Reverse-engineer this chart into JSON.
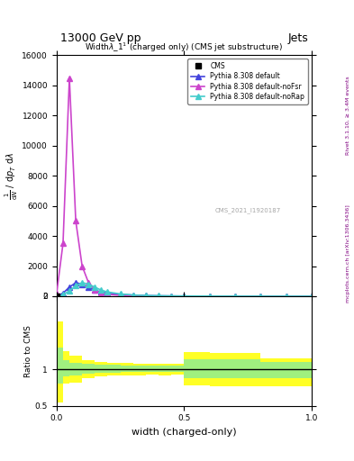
{
  "title_top": "13000 GeV pp",
  "title_right": "Jets",
  "plot_title": "Width$\\lambda$_1$^1$ (charged only) (CMS jet substructure)",
  "xlabel": "width (charged-only)",
  "ylabel_main": "$\\frac{1}{\\mathrm{d}N}$ / $\\mathrm{d}p_T$ $\\mathrm{d}\\lambda$",
  "ylabel_ratio": "Ratio to CMS",
  "right_label_top": "Rivet 3.1.10, ≥ 3.4M events",
  "right_label_bottom": "mcplots.cern.ch [arXiv:1306.3436]",
  "watermark": "CMS_2021_I1920187",
  "cms_data_x": [
    0.0,
    0.025,
    0.05,
    0.075,
    0.1,
    0.15,
    0.2,
    0.25,
    0.3,
    0.35,
    0.4,
    0.5,
    0.6,
    0.7,
    0.8,
    0.9,
    1.0
  ],
  "cms_data_y": [
    0,
    50,
    80,
    60,
    40,
    20,
    10,
    5,
    3,
    2,
    1,
    0.5,
    0.3,
    0.2,
    0.1,
    0.05,
    0.0
  ],
  "pythia_default_x": [
    0.0,
    0.025,
    0.05,
    0.075,
    0.1,
    0.125,
    0.15,
    0.175,
    0.2,
    0.25,
    0.3,
    0.35,
    0.4,
    0.45,
    0.5,
    0.6,
    0.7,
    0.8,
    0.9,
    1.0
  ],
  "pythia_default_y": [
    0,
    200,
    600,
    900,
    800,
    600,
    400,
    280,
    200,
    120,
    70,
    40,
    25,
    15,
    10,
    5,
    2,
    1,
    0.5,
    0.0
  ],
  "pythia_nofsr_x": [
    0.0,
    0.025,
    0.05,
    0.075,
    0.1,
    0.125,
    0.15,
    0.175,
    0.2,
    0.25,
    0.3,
    0.35,
    0.4,
    0.45,
    0.5,
    0.6,
    0.7,
    0.8,
    0.9,
    1.0
  ],
  "pythia_nofsr_y": [
    200,
    3500,
    14500,
    5000,
    2000,
    900,
    400,
    200,
    120,
    55,
    25,
    12,
    6,
    3,
    2,
    1,
    0.5,
    0.2,
    0.1,
    0.0
  ],
  "pythia_norap_x": [
    0.0,
    0.025,
    0.05,
    0.075,
    0.1,
    0.125,
    0.15,
    0.175,
    0.2,
    0.25,
    0.3,
    0.35,
    0.4,
    0.45,
    0.5,
    0.6,
    0.7,
    0.8,
    0.9,
    1.0
  ],
  "pythia_norap_y": [
    0,
    100,
    350,
    700,
    900,
    800,
    600,
    400,
    280,
    150,
    80,
    45,
    28,
    18,
    12,
    6,
    3,
    1.5,
    0.5,
    0.0
  ],
  "color_default": "#4444dd",
  "color_nofsr": "#cc44cc",
  "color_norap": "#44cccc",
  "color_cms": "black",
  "ylim_main": [
    0,
    16000
  ],
  "ylim_ratio": [
    0.5,
    2.0
  ],
  "xlim": [
    0.0,
    1.0
  ],
  "ratio_yellow_x": [
    0.0,
    0.025,
    0.05,
    0.1,
    0.15,
    0.2,
    0.25,
    0.3,
    0.35,
    0.4,
    0.45,
    0.5,
    0.6,
    0.7,
    0.8,
    0.9,
    1.0
  ],
  "ratio_yellow_lo": [
    0.55,
    0.8,
    0.82,
    0.88,
    0.9,
    0.91,
    0.92,
    0.92,
    0.93,
    0.92,
    0.93,
    0.78,
    0.77,
    0.77,
    0.77,
    0.77,
    0.77
  ],
  "ratio_yellow_hi": [
    1.65,
    1.25,
    1.18,
    1.12,
    1.1,
    1.09,
    1.09,
    1.08,
    1.08,
    1.08,
    1.08,
    1.23,
    1.22,
    1.22,
    1.15,
    1.15,
    1.15
  ],
  "ratio_green_x": [
    0.0,
    0.025,
    0.05,
    0.1,
    0.15,
    0.2,
    0.25,
    0.3,
    0.35,
    0.4,
    0.45,
    0.5,
    0.6,
    0.7,
    0.8,
    0.9,
    1.0
  ],
  "ratio_green_lo": [
    0.8,
    0.9,
    0.91,
    0.94,
    0.95,
    0.95,
    0.96,
    0.96,
    0.96,
    0.96,
    0.96,
    0.88,
    0.88,
    0.88,
    0.88,
    0.88,
    0.88
  ],
  "ratio_green_hi": [
    1.3,
    1.12,
    1.09,
    1.07,
    1.06,
    1.06,
    1.05,
    1.05,
    1.05,
    1.05,
    1.05,
    1.14,
    1.13,
    1.13,
    1.1,
    1.1,
    1.1
  ]
}
